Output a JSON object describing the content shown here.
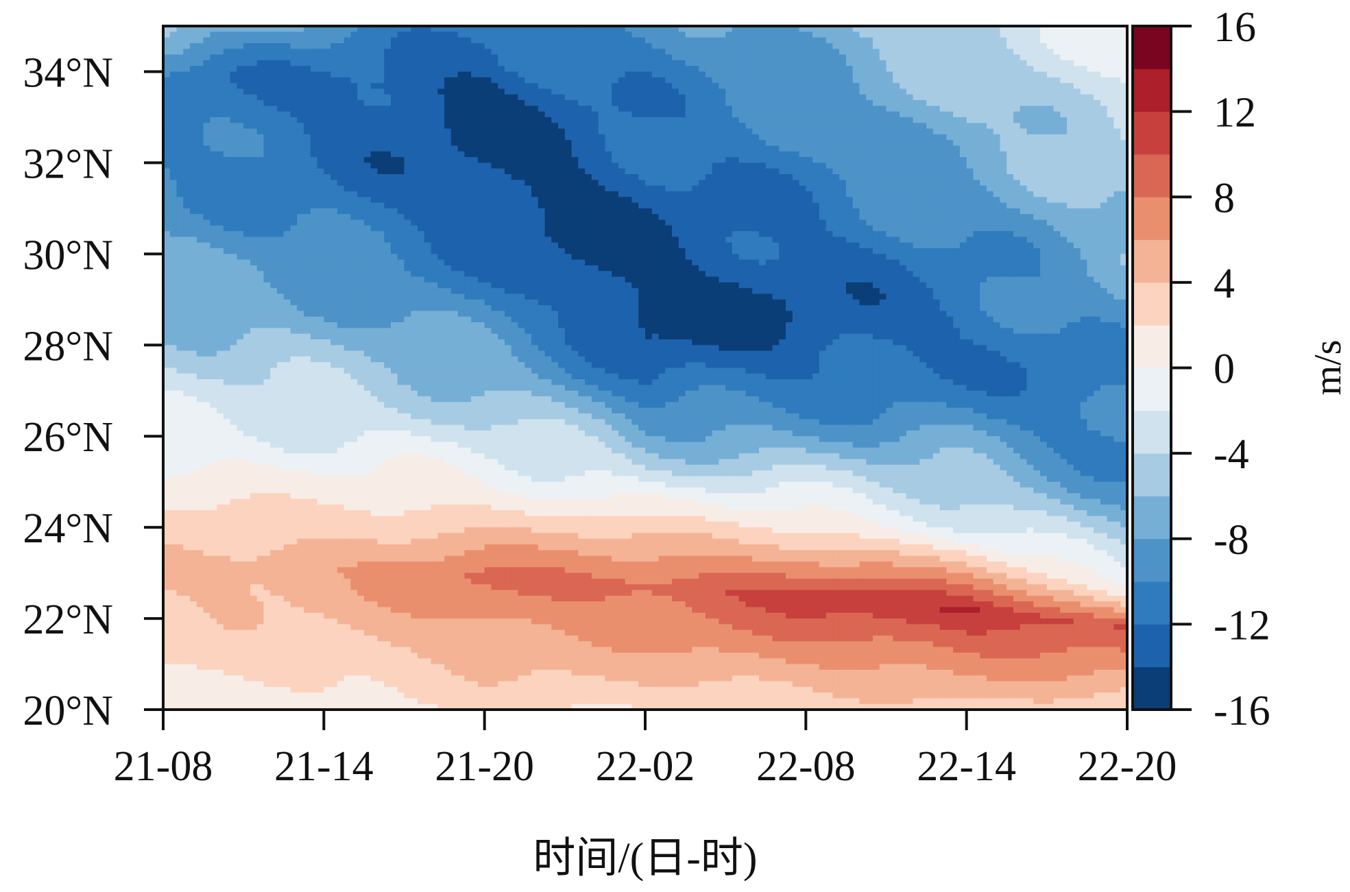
{
  "chart_data": {
    "type": "heatmap",
    "title": "",
    "xlabel": "时间/(日-时)",
    "ylabel": "",
    "x_ticks": [
      "21-08",
      "21-14",
      "21-20",
      "22-02",
      "22-08",
      "22-14",
      "22-20"
    ],
    "y_ticks": [
      "20°N",
      "22°N",
      "24°N",
      "26°N",
      "28°N",
      "30°N",
      "32°N",
      "34°N"
    ],
    "y_tick_values": [
      20,
      22,
      24,
      26,
      28,
      30,
      32,
      34
    ],
    "ylim": [
      20,
      35
    ],
    "x_hours": [
      0,
      6,
      12,
      18,
      24,
      30,
      36
    ],
    "colorbar": {
      "unit": "m/s",
      "tick_labels": [
        "16",
        "12",
        "8",
        "4",
        "0",
        "-4",
        "-8",
        "-12",
        "-16"
      ],
      "tick_values": [
        16,
        12,
        8,
        4,
        0,
        -4,
        -8,
        -12,
        -16
      ],
      "levels": [
        -16,
        -14,
        -12,
        -10,
        -8,
        -6,
        -4,
        -2,
        0,
        2,
        4,
        6,
        8,
        10,
        12,
        14,
        16
      ],
      "colors": [
        "#0b3e76",
        "#1d62ad",
        "#2f7bbd",
        "#4d93c8",
        "#76afd6",
        "#a7cbe3",
        "#cfe2ee",
        "#ebf1f5",
        "#f8ece6",
        "#fbd3bf",
        "#f4b395",
        "#ea8f6e",
        "#da6753",
        "#c7403d",
        "#ac1f2b",
        "#7a0520"
      ]
    },
    "wind_profile": {
      "hours": [
        0,
        6,
        12,
        18,
        24,
        30,
        36
      ],
      "zero_line_lat": [
        25.4,
        25.2,
        24.9,
        24.6,
        24.3,
        23.7,
        22.6
      ],
      "max_speed_lat": [
        23.2,
        23.1,
        22.9,
        22.7,
        22.5,
        22.2,
        21.8
      ],
      "max_speed": [
        4.5,
        5.5,
        8.5,
        9.0,
        11.0,
        12.0,
        10.0
      ],
      "min_speed_lat": [
        34.0,
        33.8,
        33.5,
        29.0,
        29.0,
        28.5,
        26.5
      ],
      "min_speed": [
        -10.5,
        -12.5,
        -15.0,
        -15.0,
        -14.0,
        -12.0,
        -11.0
      ],
      "north_edge_speed": [
        -6.0,
        -9.0,
        -11.5,
        -10.0,
        -7.0,
        -4.0,
        -1.0
      ]
    }
  }
}
